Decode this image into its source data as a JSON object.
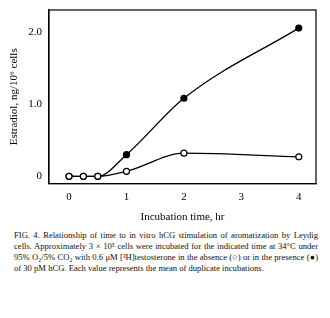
{
  "chart_data": {
    "type": "line",
    "x_label": "Incubation time, hr",
    "y_label": "Estradiol, ng/10⁶ cells",
    "caption": "FIG. 4. Relationship of time to in vitro hCG stimulation of aromatization by Leydig cells. Approximately 3 × 10⁵ cells were incubated for the indicated time at 34°C under 95% O₂/5% CO₂ with 0.6 μM [³H]testosterone in the absence (○) or in the presence (●) of 30 pM hCG. Each value represents the mean of duplicate incubations.",
    "xlim": [
      -0.35,
      4.3
    ],
    "xticks": [
      0,
      1,
      2,
      3,
      4
    ],
    "ylim": [
      -0.1,
      2.3
    ],
    "yticks": [
      0,
      {
        "value": 1,
        "label": "1.0"
      },
      {
        "value": 2,
        "label": "2.0"
      }
    ],
    "grid": false,
    "series": [
      {
        "color": "#000000",
        "marker": "open circle",
        "x": [
          0,
          0.25,
          0.5,
          1,
          2,
          4
        ],
        "values": [
          0,
          0,
          0,
          0.07,
          0.32,
          0.27
        ]
      },
      {
        "color": "#000000",
        "marker": "filled circle",
        "x": [
          0,
          0.25,
          0.5,
          1,
          2,
          4
        ],
        "values": [
          0,
          0,
          0,
          0.3,
          1.08,
          2.05
        ]
      }
    ]
  }
}
